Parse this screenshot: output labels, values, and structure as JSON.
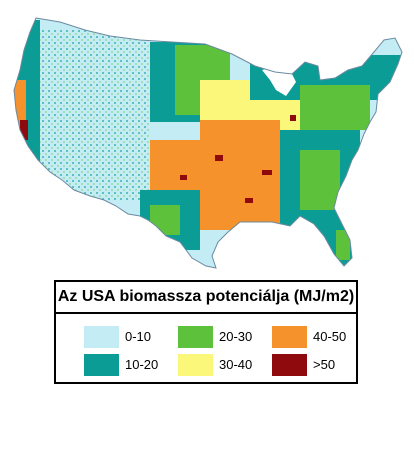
{
  "legend": {
    "title": "Az USA biomassza potenciálja (MJ/m2)",
    "classes": [
      {
        "label": "0-10",
        "color": "#c4ecf5"
      },
      {
        "label": "10-20",
        "color": "#0c9c96"
      },
      {
        "label": "20-30",
        "color": "#5ec13c"
      },
      {
        "label": "30-40",
        "color": "#fbf77a"
      },
      {
        "label": "40-50",
        "color": "#f6922c"
      },
      {
        "label": ">50",
        "color": "#8e0a0c"
      }
    ]
  }
}
